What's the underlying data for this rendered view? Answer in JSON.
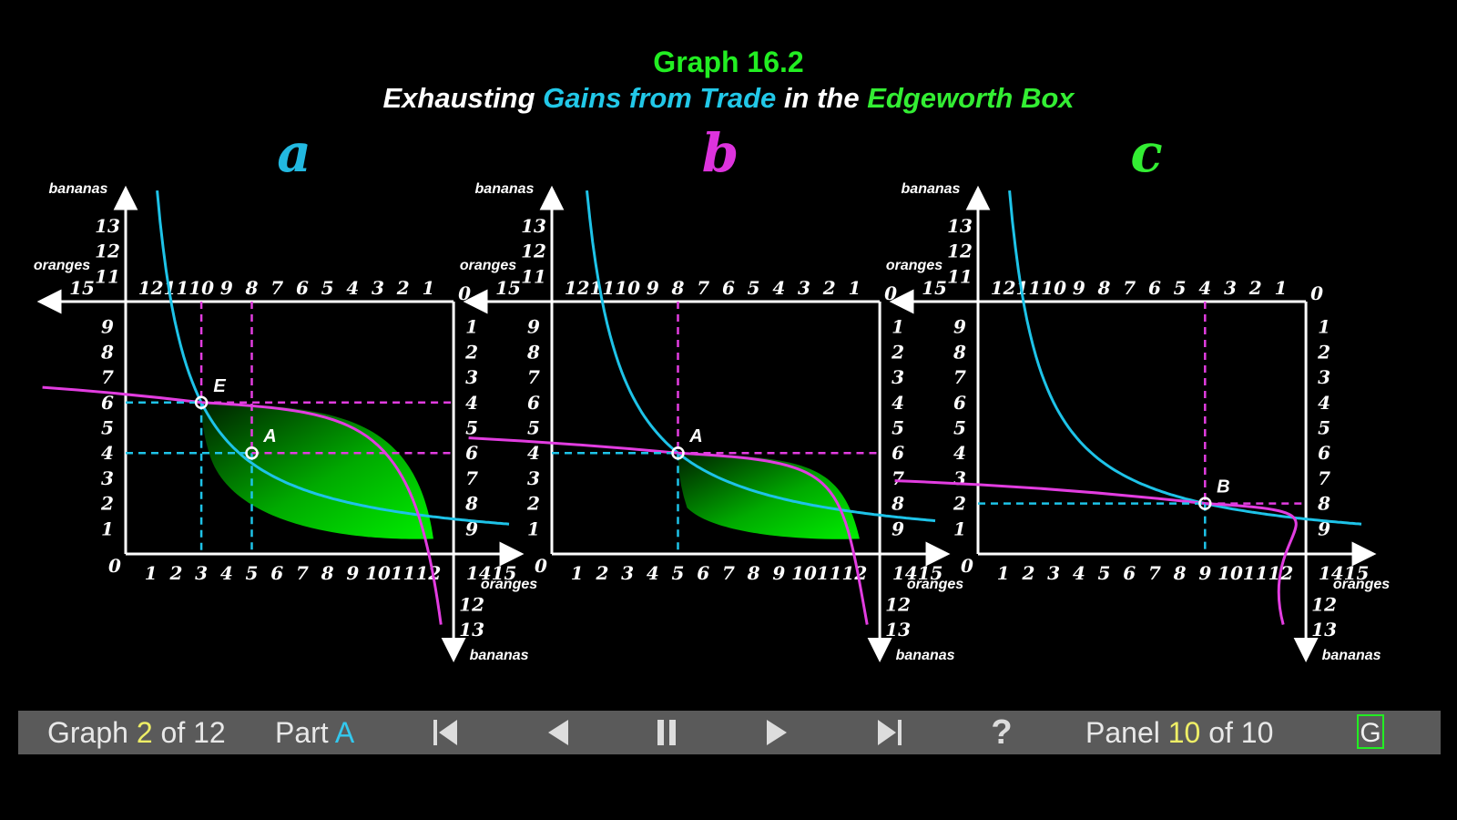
{
  "header": {
    "graph_number": "Graph 16.2",
    "subtitle_parts": [
      {
        "text": "Exhausting ",
        "color": "#ffffff"
      },
      {
        "text": "Gains from Trade",
        "color": "#22c8e8"
      },
      {
        "text": " in the ",
        "color": "#ffffff"
      },
      {
        "text": "Edgeworth Box",
        "color": "#33ee33"
      }
    ]
  },
  "colors": {
    "person1": "#1ec3e8",
    "person2": "#e23de0",
    "endowment": "#33ee33",
    "axis": "#ffffff",
    "lens": "#00ee00"
  },
  "chart_data": [
    {
      "type": "line",
      "panel_label": "a",
      "label_color": "#22b8e0",
      "x_axis": {
        "label": "oranges",
        "range": [
          0,
          15
        ],
        "ticks": [
          1,
          2,
          3,
          4,
          5,
          6,
          7,
          8,
          9,
          10,
          11,
          12,
          14,
          15
        ]
      },
      "y_axis": {
        "label": "bananas",
        "range": [
          0,
          13
        ],
        "ticks": [
          1,
          2,
          3,
          4,
          5,
          6,
          7,
          8,
          9,
          11,
          12,
          13
        ]
      },
      "top_axis": {
        "label": "oranges",
        "ticks_reversed": [
          1,
          2,
          3,
          4,
          5,
          6,
          7,
          8,
          9,
          10,
          11,
          12,
          15
        ]
      },
      "right_axis": {
        "label": "bananas",
        "ticks_down": [
          1,
          2,
          3,
          4,
          5,
          6,
          7,
          8,
          9,
          12,
          13
        ]
      },
      "box": {
        "oranges": 13,
        "bananas": 10
      },
      "points": [
        {
          "label": "E",
          "x": 3,
          "y": 6,
          "color": "#e23de0",
          "top_x": 10,
          "right_y": 4
        },
        {
          "label": "A",
          "x": 5,
          "y": 4,
          "color": "#33ee33",
          "top_x": 8,
          "right_y": 6
        }
      ],
      "highlighted_ticks": {
        "bottom": [
          [
            "3",
            "#1ec3e8"
          ],
          [
            "5",
            "#33ee33"
          ]
        ],
        "left": [
          [
            "6",
            "#1ec3e8"
          ],
          [
            "4",
            "#33ee33"
          ]
        ],
        "top": [
          [
            "10",
            "#e23de0"
          ]
        ],
        "right": [
          [
            "4",
            "#e23de0"
          ]
        ]
      },
      "shaded_lens": true,
      "series": [
        {
          "name": "person1",
          "kind": "indifference",
          "through": [
            3,
            6
          ]
        },
        {
          "name": "person2",
          "kind": "indifference",
          "through": [
            3,
            6
          ]
        }
      ]
    },
    {
      "type": "line",
      "panel_label": "b",
      "label_color": "#dd33dd",
      "x_axis": {
        "label": "oranges",
        "range": [
          0,
          15
        ],
        "ticks": [
          1,
          2,
          3,
          4,
          5,
          6,
          7,
          8,
          9,
          10,
          11,
          12,
          14,
          15
        ]
      },
      "y_axis": {
        "label": "bananas",
        "range": [
          0,
          13
        ],
        "ticks": [
          1,
          2,
          3,
          4,
          5,
          6,
          7,
          8,
          9,
          11,
          12,
          13
        ]
      },
      "top_axis": {
        "label": "oranges",
        "ticks_reversed": [
          1,
          2,
          3,
          4,
          5,
          6,
          7,
          8,
          9,
          10,
          11,
          12,
          15
        ]
      },
      "right_axis": {
        "label": "bananas",
        "ticks_down": [
          1,
          2,
          3,
          4,
          5,
          6,
          7,
          8,
          9,
          12,
          13
        ]
      },
      "box": {
        "oranges": 13,
        "bananas": 10
      },
      "points": [
        {
          "label": "A",
          "x": 5,
          "y": 4,
          "color": "#33ee33",
          "top_x": 8,
          "right_y": 6
        }
      ],
      "highlighted_ticks": {
        "bottom": [
          [
            "5",
            "#1ec3e8"
          ]
        ],
        "left": [
          [
            "4",
            "#1ec3e8"
          ]
        ],
        "top": [
          [
            "8",
            "#e23de0"
          ]
        ],
        "right": [
          [
            "6",
            "#e23de0"
          ]
        ]
      },
      "shaded_lens": true,
      "series": [
        {
          "name": "person1",
          "kind": "indifference",
          "through": [
            5,
            4
          ]
        },
        {
          "name": "person2",
          "kind": "indifference",
          "through": [
            5,
            4
          ]
        }
      ]
    },
    {
      "type": "line",
      "panel_label": "c",
      "label_color": "#33ee33",
      "x_axis": {
        "label": "oranges",
        "range": [
          0,
          15
        ],
        "ticks": [
          1,
          2,
          3,
          4,
          5,
          6,
          7,
          8,
          9,
          10,
          11,
          12,
          14,
          15
        ]
      },
      "y_axis": {
        "label": "bananas",
        "range": [
          0,
          13
        ],
        "ticks": [
          1,
          2,
          3,
          4,
          5,
          6,
          7,
          8,
          9,
          11,
          12,
          13
        ]
      },
      "top_axis": {
        "label": "oranges",
        "ticks_reversed": [
          1,
          2,
          3,
          4,
          5,
          6,
          7,
          8,
          9,
          10,
          11,
          12,
          15
        ]
      },
      "right_axis": {
        "label": "bananas",
        "ticks_down": [
          1,
          2,
          3,
          4,
          5,
          6,
          7,
          8,
          9,
          12,
          13
        ]
      },
      "box": {
        "oranges": 13,
        "bananas": 10
      },
      "points": [
        {
          "label": "B",
          "x": 9,
          "y": 2,
          "color": "#1ec3e8",
          "top_x": 4,
          "right_y": 8
        }
      ],
      "highlighted_ticks": {
        "bottom": [
          [
            "9",
            "#1ec3e8"
          ]
        ],
        "left": [
          [
            "2",
            "#1ec3e8"
          ]
        ],
        "top": [
          [
            "4",
            "#e23de0"
          ]
        ],
        "right": [
          [
            "8",
            "#e23de0"
          ]
        ]
      },
      "shaded_lens": false,
      "series": [
        {
          "name": "person1",
          "kind": "indifference",
          "through": [
            9,
            2
          ]
        },
        {
          "name": "person2",
          "kind": "indifference",
          "through": [
            9,
            2
          ]
        }
      ]
    }
  ],
  "navbar": {
    "graph_prefix": "Graph ",
    "graph_current": "2",
    "graph_suffix": " of 12",
    "part_prefix": "Part ",
    "part_value": "A",
    "panel_prefix": "Panel ",
    "panel_current": "10",
    "panel_suffix": " of 10",
    "help_label": "?",
    "g_label": "G",
    "buttons": [
      "first-icon",
      "previous-icon",
      "pause-icon",
      "next-icon",
      "last-icon",
      "help-icon"
    ]
  }
}
